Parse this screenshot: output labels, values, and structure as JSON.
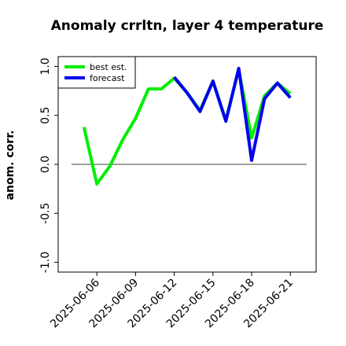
{
  "chart_data": {
    "type": "line",
    "title": "Anomaly crrltn, layer 4 temperature",
    "ylabel": "anom. corr.",
    "x": [
      "2025-06-05",
      "2025-06-06",
      "2025-06-07",
      "2025-06-08",
      "2025-06-09",
      "2025-06-10",
      "2025-06-11",
      "2025-06-12",
      "2025-06-13",
      "2025-06-14",
      "2025-06-15",
      "2025-06-16",
      "2025-06-17",
      "2025-06-18",
      "2025-06-19",
      "2025-06-20",
      "2025-06-21"
    ],
    "series": [
      {
        "name": "best est.",
        "color": "#00ee00",
        "values": [
          0.38,
          -0.2,
          -0.02,
          0.25,
          0.47,
          0.77,
          0.77,
          0.88,
          0.73,
          0.55,
          0.85,
          0.45,
          0.97,
          0.27,
          0.7,
          0.83,
          0.72
        ]
      },
      {
        "name": "forecast",
        "color": "#0000ee",
        "values": [
          null,
          null,
          null,
          null,
          null,
          null,
          null,
          0.89,
          0.73,
          0.54,
          0.85,
          0.44,
          0.98,
          0.04,
          0.67,
          0.83,
          0.68
        ]
      }
    ],
    "xlim": [
      "2025-06-03",
      "2025-06-23"
    ],
    "xticks": [
      "2025-06-06",
      "2025-06-09",
      "2025-06-12",
      "2025-06-15",
      "2025-06-18",
      "2025-06-21"
    ],
    "xtick_colors": [
      "#000000",
      "#000000",
      "#228b22",
      "#000000",
      "#000000",
      "#000000"
    ],
    "ylim": [
      -1.1,
      1.1
    ],
    "yticks": [
      {
        "value": 1,
        "label": "1.0"
      },
      {
        "value": 0.5,
        "label": "0.5"
      },
      {
        "value": 0,
        "label": "0.0"
      },
      {
        "value": -0.5,
        "label": "-0.5"
      },
      {
        "value": -1,
        "label": "-1.0"
      }
    ],
    "hline": 0,
    "legend": "upper left"
  }
}
